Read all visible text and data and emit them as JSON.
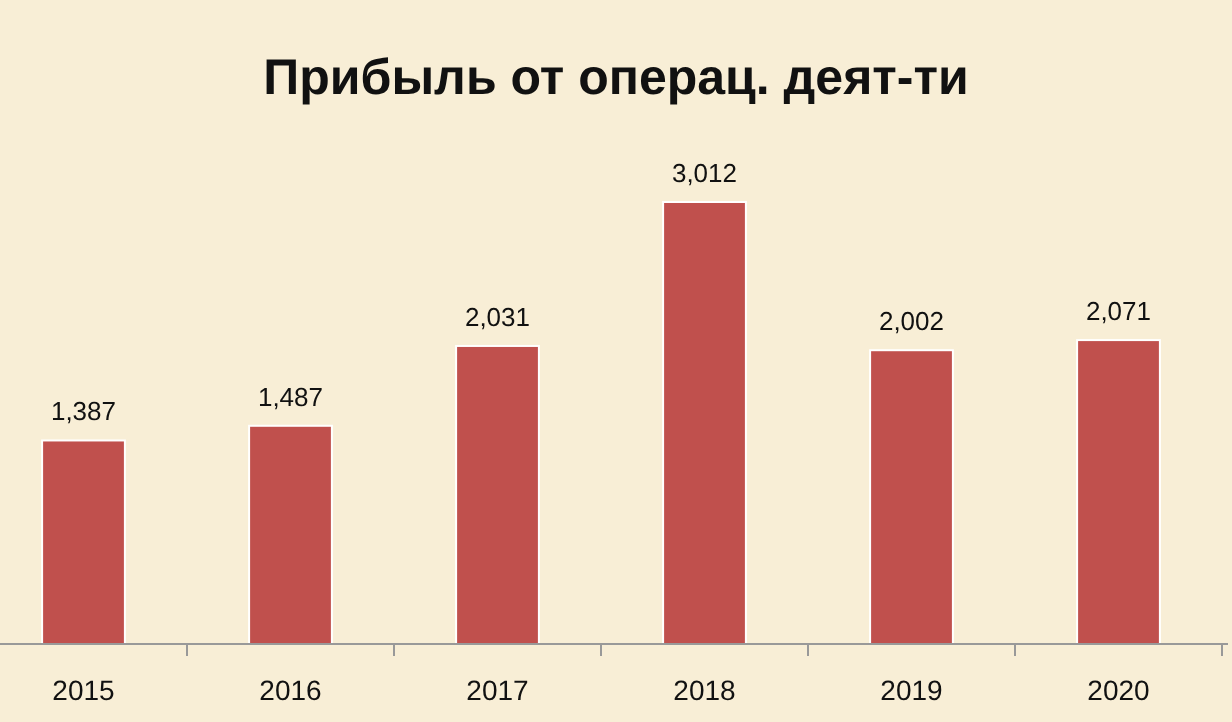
{
  "chart_data": {
    "type": "bar",
    "title": "Прибыль от операц. деят-ти",
    "categories": [
      "2015",
      "2016",
      "2017",
      "2018",
      "2019",
      "2020"
    ],
    "values": [
      1387,
      1487,
      2031,
      3012,
      2002,
      2071
    ],
    "value_labels": [
      "1,387",
      "1,487",
      "2,031",
      "3,012",
      "2,002",
      "2,071"
    ],
    "color": "#c0504d"
  }
}
